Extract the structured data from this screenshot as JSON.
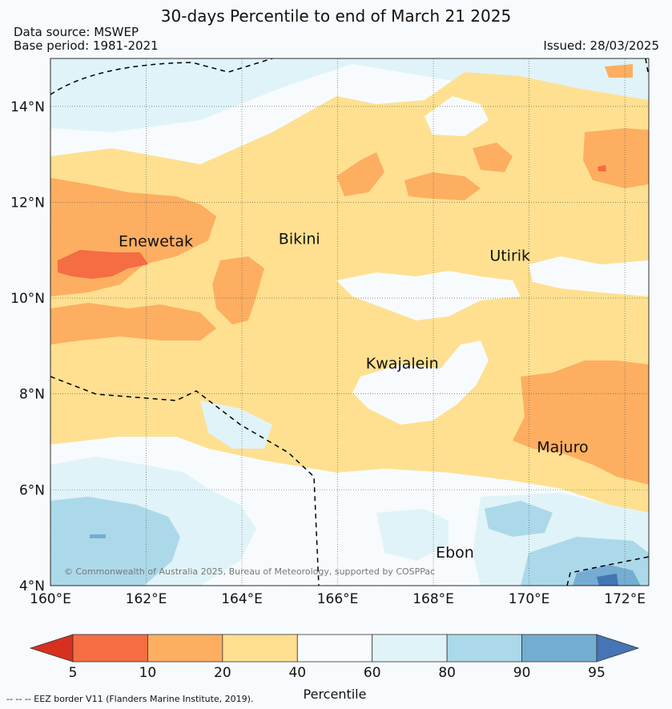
{
  "header": {
    "title": "30-days Percentile to end of March 21 2025",
    "data_source": "Data source: MSWEP",
    "base_period": "Base period: 1981-2021",
    "issued": "Issued: 28/03/2025"
  },
  "map": {
    "lon_range": [
      160,
      172.5
    ],
    "lat_range": [
      4,
      15
    ],
    "x_ticks": [
      "160°E",
      "162°E",
      "164°E",
      "166°E",
      "168°E",
      "170°E",
      "172°E"
    ],
    "y_ticks": [
      "4°N",
      "6°N",
      "8°N",
      "10°N",
      "12°N",
      "14°N"
    ],
    "gridlines": true,
    "places": [
      {
        "name": "Enewetak",
        "lon": 162.2,
        "lat": 11.2
      },
      {
        "name": "Bikini",
        "lon": 165.2,
        "lat": 11.25
      },
      {
        "name": "Utirik",
        "lon": 169.6,
        "lat": 10.9
      },
      {
        "name": "Kwajalein",
        "lon": 167.35,
        "lat": 8.65
      },
      {
        "name": "Majuro",
        "lon": 170.7,
        "lat": 6.9
      },
      {
        "name": "Ebon",
        "lon": 168.45,
        "lat": 4.7
      }
    ],
    "copyright": "© Commonwealth of Australia 2025, Bureau of Meteorology, supported by COSPPac"
  },
  "legend": {
    "label": "Percentile",
    "ticks": [
      "5",
      "10",
      "20",
      "40",
      "60",
      "80",
      "90",
      "95"
    ],
    "colors": [
      "#d7301f",
      "#f46d43",
      "#fdae61",
      "#fee090",
      "#f7fbfd",
      "#e0f3f8",
      "#abd9e9",
      "#74add1",
      "#4575b4"
    ]
  },
  "footnote": "--  --  -- EEZ border V11 (Flanders Marine Institute, 2019)."
}
